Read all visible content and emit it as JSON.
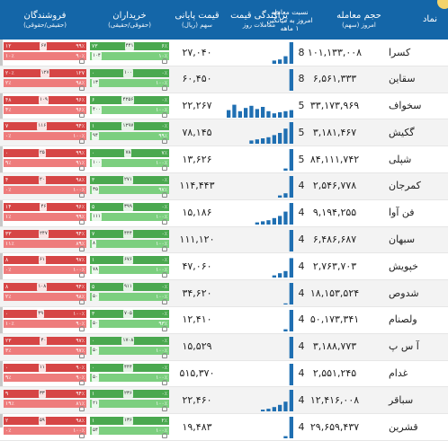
{
  "header": {
    "name": "نماد",
    "volume": "حجم معامله",
    "volume_sub": "امروز (سهم)",
    "ratio": "نسبت معامله امروز به میانگین ۱ ماهه",
    "dispersion": "پراکندگی قیمت",
    "dispersion_sub": "معاملات روز",
    "price": "قیمت پایانی",
    "price_sub": "سهم (ریال)",
    "buyers": "خریداران",
    "buyers_sub": "(حقوقی/حقیقی)",
    "sellers": "فروشندگان",
    "sellers_sub": "(حقیقی/حقوقی)"
  },
  "colors": {
    "header_bg": "#1466a8",
    "chart_bar": "#1f6fb2",
    "buyer_green": "#4aa84f",
    "seller_red": "#d64545"
  },
  "rows": [
    {
      "name": "کسرا",
      "volume": "۱۰۱,۱۳۳,۰۰۸",
      "ratio": "8",
      "price": "۲۷,۰۴۰",
      "buy_top": [
        "۶٪",
        "۴۴۱",
        "۷۳"
      ],
      "buy_bot": [
        "۱۰٪",
        "۱۰۴"
      ],
      "sell_top": [
        "۹۹٪",
        "۶۷",
        "۱۲"
      ],
      "sell_bot": [
        "۹۰٪",
        "۱۰٪"
      ],
      "bars": [
        0,
        0,
        0,
        0,
        0,
        0,
        0,
        0,
        0.15,
        0.2,
        0.35,
        1
      ]
    },
    {
      "name": "سقاین",
      "volume": "۶,۵۶۱,۳۳۳",
      "ratio": "8",
      "price": "۶۰,۴۵۰",
      "buy_top": [
        "۰٪",
        "۱۰۰",
        "۰"
      ],
      "buy_bot": [
        "۱۰۰٪",
        "۱۳"
      ],
      "sell_top": [
        "۱۲۷",
        "۱۲۷",
        "۲۰٪"
      ],
      "sell_bot": [
        "۹۸٪",
        "۲٪"
      ],
      "bars": [
        0,
        0,
        0,
        0,
        0,
        0,
        0,
        0,
        0,
        0,
        0,
        1
      ]
    },
    {
      "name": "سخواف",
      "volume": "۳۳,۱۷۳,۹۶۹",
      "ratio": "5",
      "price": "۲۲,۲۶۷",
      "buy_top": [
        "۰٪",
        "۴۲۵۶",
        "۶"
      ],
      "buy_bot": [
        "۱۰۰٪",
        "۴۰۰"
      ],
      "sell_top": [
        "۹۶٪",
        "۱۰۹",
        "۴۸"
      ],
      "sell_bot": [
        "۹۶٪",
        "۴٪"
      ],
      "bars": [
        0.35,
        0.6,
        0.3,
        0.45,
        0.55,
        0.4,
        0.5,
        0.3,
        0.2,
        0.25,
        0.3,
        0.35
      ]
    },
    {
      "name": "گکیش",
      "volume": "۳,۱۸۱,۴۶۷",
      "ratio": "5",
      "price": "۷۸,۱۴۵",
      "buy_top": [
        "۰٪",
        "۱۲۹۷",
        "۱"
      ],
      "buy_bot": [
        "۹۹٪",
        "۹۴"
      ],
      "sell_top": [
        "۹۴٪",
        "۱۱۶",
        "۷"
      ],
      "sell_bot": [
        "۱۰۰٪",
        "۰٪"
      ],
      "bars": [
        0,
        0,
        0,
        0,
        0.15,
        0.2,
        0.25,
        0.3,
        0.4,
        0.5,
        0.7,
        1
      ]
    },
    {
      "name": "شپلی",
      "volume": "۸۴,۱۱۱,۷۴۲",
      "ratio": "5",
      "price": "۱۳,۶۲۶",
      "buy_top": [
        "۷٪",
        "۷۸",
        "۰"
      ],
      "buy_bot": [
        "۱۰۰٪",
        "۱۰۰"
      ],
      "sell_top": [
        "۹۹٪",
        "۲۵",
        "۰"
      ],
      "sell_bot": [
        "۹۱٪",
        "۹٪"
      ],
      "bars": [
        0,
        0,
        0,
        0,
        0,
        0,
        0,
        0,
        0,
        0,
        0.1,
        1
      ]
    },
    {
      "name": "کمرجان",
      "volume": "۲,۵۴۶,۷۷۸",
      "ratio": "4",
      "price": "۱۱۴,۴۴۳",
      "buy_top": [
        "۰٪",
        "۲۷۱",
        "۳"
      ],
      "buy_bot": [
        "۹۷٪",
        "۳۵"
      ],
      "sell_top": [
        "۹۸٪",
        "۲۰",
        "۴"
      ],
      "sell_bot": [
        "۱۰۰٪",
        "۰٪"
      ],
      "bars": [
        0,
        0,
        0,
        0,
        0,
        0,
        0,
        0,
        0,
        0.1,
        0.2,
        1
      ]
    },
    {
      "name": "فن آوا",
      "volume": "۹,۱۹۴,۲۵۵",
      "ratio": "4",
      "price": "۱۵,۱۸۶",
      "buy_top": [
        "۰٪",
        "۳۹۹",
        "۵"
      ],
      "buy_bot": [
        "۱۰۰٪",
        "۱۱۱"
      ],
      "sell_top": [
        "۹۶٪",
        "۴۶",
        "۱۴"
      ],
      "sell_bot": [
        "۹۹٪",
        "۱٪"
      ],
      "bars": [
        0,
        0,
        0,
        0,
        0,
        0.1,
        0.15,
        0.2,
        0.3,
        0.4,
        0.6,
        1
      ]
    },
    {
      "name": "سبهان",
      "volume": "۶,۴۸۶,۶۸۷",
      "ratio": "4",
      "price": "۱۱۱,۱۲۰",
      "buy_top": [
        "۰٪",
        "۴۴۴",
        "۷"
      ],
      "buy_bot": [
        "۱۰۰٪",
        "۸"
      ],
      "sell_top": [
        "۹۴٪",
        "۲۴۷",
        "۳۳"
      ],
      "sell_bot": [
        "۸۹٪",
        "۱۱٪"
      ],
      "bars": [
        0,
        0,
        0,
        0,
        0,
        0,
        0,
        0,
        0,
        0,
        0,
        1
      ]
    },
    {
      "name": "خپویش",
      "volume": "۲,۷۶۳,۷۰۳",
      "ratio": "4",
      "price": "۴۷,۰۶۰",
      "buy_top": [
        "۰٪",
        "۶۷۶",
        "۱"
      ],
      "buy_bot": [
        "۱۰۰٪",
        "۷۸"
      ],
      "sell_top": [
        "۹۷٪",
        "۶۱",
        "۸"
      ],
      "sell_bot": [
        "۱۰۰٪",
        "۰٪"
      ],
      "bars": [
        0,
        0,
        0,
        0,
        0,
        0,
        0,
        0,
        0.1,
        0.2,
        0.3,
        0.9
      ]
    },
    {
      "name": "شدوص",
      "volume": "۱۸,۱۵۳,۵۲۴",
      "ratio": "4",
      "price": "۳۴,۶۲۰",
      "buy_top": [
        "۰٪",
        "۹۱۱",
        "۵"
      ],
      "buy_bot": [
        "۱۰۰٪",
        "۵۰"
      ],
      "sell_top": [
        "۹۴٪",
        "۱۰۸",
        "۸"
      ],
      "sell_bot": [
        "۹۸٪",
        "۲٪"
      ],
      "bars": [
        0,
        0,
        0,
        0,
        0,
        0,
        0,
        0,
        0,
        0,
        0.05,
        1
      ]
    },
    {
      "name": "ولصنام",
      "volume": "۵۰,۱۷۳,۳۴۱",
      "ratio": "4",
      "price": "۱۲,۴۱۰",
      "buy_top": [
        "۰٪",
        "۷۰۵",
        "۳"
      ],
      "buy_bot": [
        "۹۳٪",
        "۵۰"
      ],
      "sell_top": [
        "۱۰۰٪",
        "۴۹",
        "۰"
      ],
      "sell_bot": [
        "۹۰٪",
        "۱۰٪"
      ],
      "bars": [
        0,
        0,
        0,
        0,
        0,
        0,
        0,
        0,
        0,
        0,
        0.1,
        1
      ]
    },
    {
      "name": "آ س پ",
      "volume": "۳,۱۸۸,۷۷۳",
      "ratio": "4",
      "price": "۱۵,۵۲۹",
      "buy_top": [
        "۰٪",
        "۱۷۰۸",
        "۰"
      ],
      "buy_bot": [
        "۱۰۰٪",
        "۵۰"
      ],
      "sell_top": [
        "۹۷٪",
        "۴۰",
        "۲۳"
      ],
      "sell_bot": [
        "۹۷٪",
        "۳٪"
      ],
      "bars": [
        0,
        0,
        0,
        0,
        0,
        0,
        0,
        0,
        0,
        0,
        0,
        1
      ]
    },
    {
      "name": "غدام",
      "volume": "۲,۵۵۱,۲۴۵",
      "ratio": "4",
      "price": "۵۱۵,۳۷۰",
      "buy_top": [
        "۰٪",
        "۴۴۴",
        "۰"
      ],
      "buy_bot": [
        "۱۰۰٪",
        "۵۰"
      ],
      "sell_top": [
        "۹۰٪",
        "۱۱",
        "۰"
      ],
      "sell_bot": [
        "۹۰٪",
        "۹٪"
      ],
      "bars": [
        0,
        0,
        0,
        0,
        0,
        0,
        0,
        0,
        0,
        0,
        0,
        1
      ]
    },
    {
      "name": "سباقر",
      "volume": "۱۲,۴۱۶,۰۰۸",
      "ratio": "4",
      "price": "۲۲,۴۶۰",
      "buy_top": [
        "۰٪",
        "۲۳۶",
        "۱"
      ],
      "buy_bot": [
        "۱۰۰٪",
        "۲۱"
      ],
      "sell_top": [
        "۹۴٪",
        "۳۳",
        "۹"
      ],
      "sell_bot": [
        "۸۱٪",
        "۱۹٪"
      ],
      "bars": [
        0,
        0,
        0,
        0,
        0,
        0,
        0.08,
        0.12,
        0.2,
        0.3,
        0.45,
        1
      ]
    },
    {
      "name": "قشرین",
      "volume": "۲۹,۶۵۹,۴۳۷",
      "ratio": "4",
      "price": "۱۹,۴۸۳",
      "buy_top": [
        "۲٪",
        "۱۳۶",
        "۱"
      ],
      "buy_bot": [
        "۱۰۰٪",
        "۵۴"
      ],
      "sell_top": [
        "۹۸٪",
        "۵۹",
        "۲"
      ],
      "sell_bot": [
        "۱۰۰٪",
        "۰٪"
      ],
      "bars": [
        0,
        0,
        0,
        0,
        0,
        0,
        0,
        0,
        0,
        0,
        0.1,
        1
      ]
    }
  ]
}
